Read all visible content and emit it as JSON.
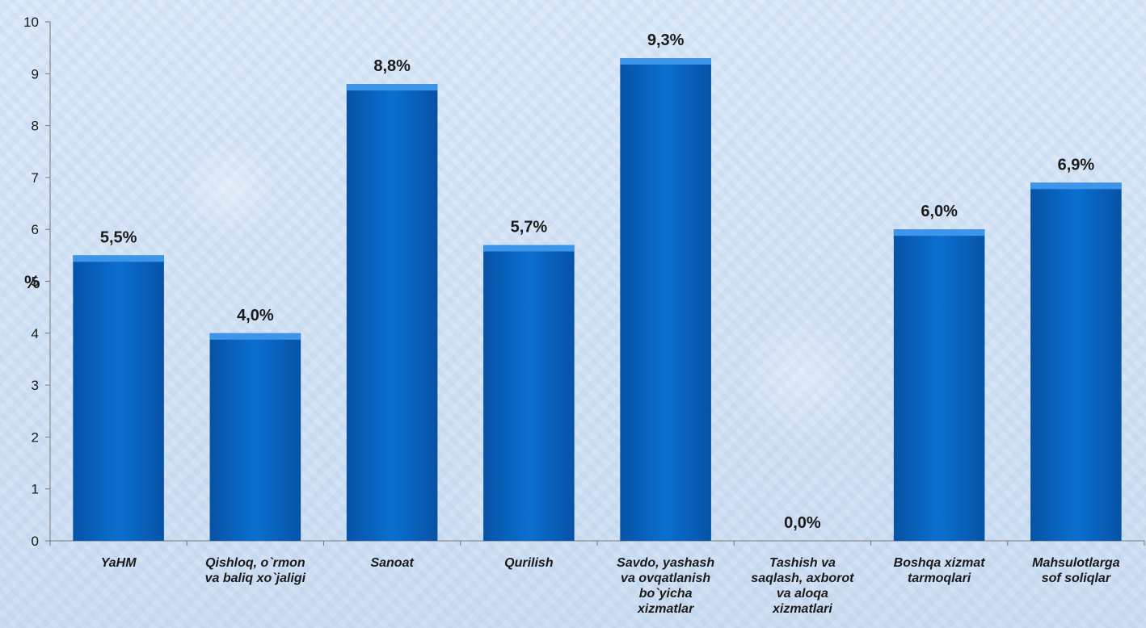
{
  "chart_data": {
    "type": "bar",
    "title": "",
    "xlabel": "",
    "ylabel": "%",
    "ylim": [
      0,
      10
    ],
    "yticks": [
      "0",
      "1",
      "2",
      "3",
      "4",
      "5",
      "6",
      "7",
      "8",
      "9",
      "10"
    ],
    "grid": false,
    "categories": [
      [
        "YaHM"
      ],
      [
        "Qishloq, o`rmon",
        "va baliq xo`jaligi"
      ],
      [
        "Sanoat"
      ],
      [
        "Qurilish"
      ],
      [
        "Savdo, yashash",
        "va ovqatlanish",
        "bo`yicha",
        "xizmatlar"
      ],
      [
        "Tashish va",
        "saqlash, axborot",
        "va aloqa",
        "xizmatlari"
      ],
      [
        "Boshqa xizmat",
        "tarmoqlari"
      ],
      [
        "Mahsulotlarga",
        "sof soliqlar"
      ]
    ],
    "values": [
      5.5,
      4.0,
      8.8,
      5.7,
      9.3,
      0.0,
      6.0,
      6.9
    ],
    "data_labels": [
      "5,5%",
      "4,0%",
      "8,8%",
      "5,7%",
      "9,3%",
      "0,0%",
      "6,0%",
      "6,9%"
    ],
    "colors": {
      "bar": "#0a6fd0",
      "bar_light": "#3d95ea",
      "bar_dark": "#0653a6",
      "axis": "#7a7a7a"
    }
  }
}
